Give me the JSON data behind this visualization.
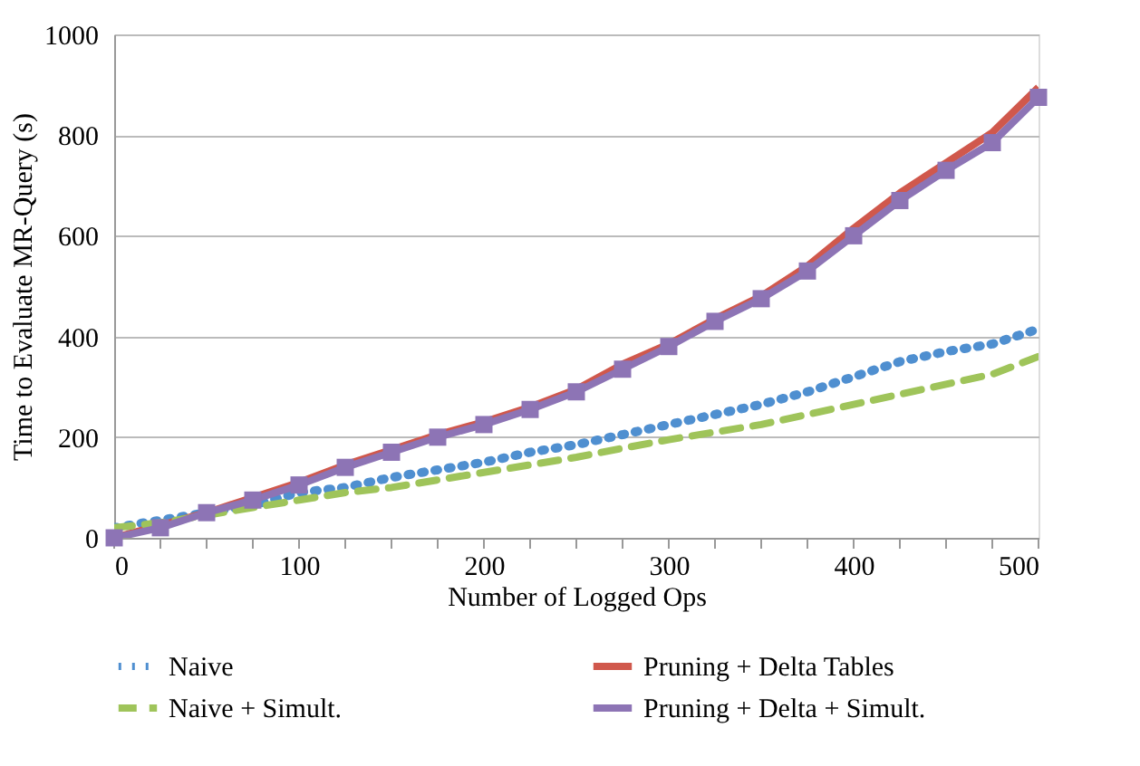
{
  "chart_data": {
    "type": "line",
    "xlabel": "Number of Logged Ops",
    "ylabel": "Time to Evaluate MR-Query  (s)",
    "x": [
      0,
      25,
      50,
      75,
      100,
      125,
      150,
      175,
      200,
      225,
      250,
      275,
      300,
      325,
      350,
      375,
      400,
      425,
      450,
      475,
      500
    ],
    "series": [
      {
        "name": "Naive",
        "color": "#4f8fd0",
        "line_style": "dotted",
        "marker": "none",
        "values": [
          20,
          35,
          50,
          65,
          90,
          100,
          120,
          135,
          150,
          170,
          185,
          205,
          225,
          245,
          265,
          290,
          320,
          350,
          370,
          385,
          415
        ]
      },
      {
        "name": "Pruning + Delta Tables",
        "color": "#d0584c",
        "line_style": "solid",
        "marker": "none",
        "values": [
          0,
          25,
          50,
          80,
          110,
          145,
          175,
          205,
          230,
          260,
          295,
          345,
          385,
          435,
          480,
          540,
          615,
          685,
          745,
          805,
          895
        ]
      },
      {
        "name": "Naive + Simult.",
        "color": "#9fc45a",
        "line_style": "dashed",
        "marker": "none",
        "values": [
          20,
          30,
          45,
          60,
          75,
          90,
          100,
          115,
          130,
          145,
          160,
          178,
          195,
          210,
          225,
          245,
          265,
          285,
          305,
          325,
          360
        ]
      },
      {
        "name": "Pruning + Delta + Simult.",
        "color": "#8d74b5",
        "line_style": "solid",
        "marker": "square",
        "values": [
          0,
          20,
          50,
          75,
          105,
          140,
          170,
          200,
          225,
          255,
          290,
          335,
          380,
          430,
          475,
          530,
          600,
          670,
          730,
          785,
          875
        ]
      }
    ],
    "xlim": [
      0,
      500
    ],
    "xticks": [
      0,
      {
        "value": 25,
        "label": null
      },
      {
        "value": 50,
        "label": null
      },
      {
        "value": 75,
        "label": null
      },
      100,
      {
        "value": 125,
        "label": null
      },
      {
        "value": 150,
        "label": null
      },
      {
        "value": 175,
        "label": null
      },
      200,
      {
        "value": 225,
        "label": null
      },
      {
        "value": 250,
        "label": null
      },
      {
        "value": 275,
        "label": null
      },
      300,
      {
        "value": 325,
        "label": null
      },
      {
        "value": 350,
        "label": null
      },
      {
        "value": 375,
        "label": null
      },
      400,
      {
        "value": 425,
        "label": null
      },
      {
        "value": 450,
        "label": null
      },
      {
        "value": 475,
        "label": null
      },
      500
    ],
    "ylim": [
      0,
      1000
    ],
    "yticks": [
      0,
      200,
      400,
      600,
      800,
      1000
    ],
    "grid": "y",
    "legend": "bottom"
  }
}
